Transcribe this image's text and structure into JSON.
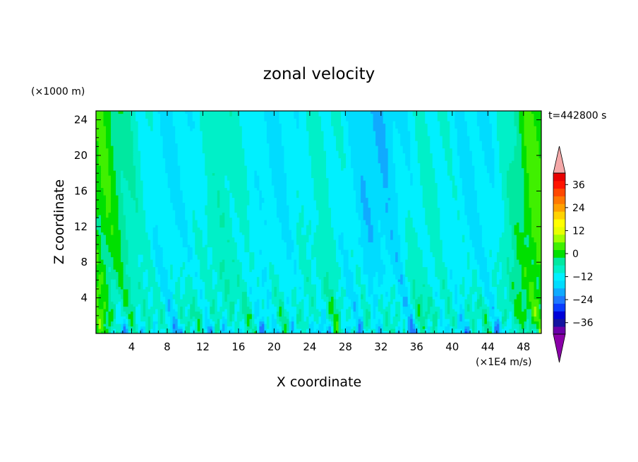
{
  "chart_data": {
    "type": "heatmap",
    "title": "zonal velocity",
    "xlabel": "X coordinate",
    "ylabel": "Z coordinate",
    "y_unit": "(×1000 m)",
    "color_unit": "(×1E4 m/s)",
    "time_label": "t=442800 s",
    "xlim": [
      0,
      50
    ],
    "ylim": [
      0,
      25
    ],
    "x_ticks": [
      4,
      8,
      12,
      16,
      20,
      24,
      28,
      32,
      36,
      40,
      44,
      48
    ],
    "y_ticks": [
      4,
      8,
      12,
      16,
      20,
      24
    ],
    "x_tick_labels": [
      "4",
      "8",
      "12",
      "16",
      "20",
      "24",
      "28",
      "32",
      "36",
      "40",
      "44",
      "48"
    ],
    "y_tick_labels": [
      "4",
      "8",
      "12",
      "16",
      "20",
      "24"
    ],
    "colorbar": {
      "min": -42,
      "max": 42,
      "step": 4.6667,
      "tick_values": [
        36,
        24,
        12,
        0,
        -12,
        -24,
        -36
      ],
      "tick_labels": [
        "36",
        "24",
        "12",
        "0",
        "−12",
        "−24",
        "−36"
      ],
      "colors": [
        "#6a00a8",
        "#1414a0",
        "#0000d8",
        "#0a3cff",
        "#1e78ff",
        "#10aaff",
        "#00dcff",
        "#00f0ff",
        "#00f0c8",
        "#00e8a0",
        "#00e000",
        "#40f000",
        "#a0ff00",
        "#e8ff00",
        "#ffff00",
        "#ffd200",
        "#ffa000",
        "#ff7800",
        "#ff4800",
        "#ff1400",
        "#e80000"
      ],
      "under_color": "#8a00a8",
      "over_color": "#f4a8a8"
    }
  }
}
